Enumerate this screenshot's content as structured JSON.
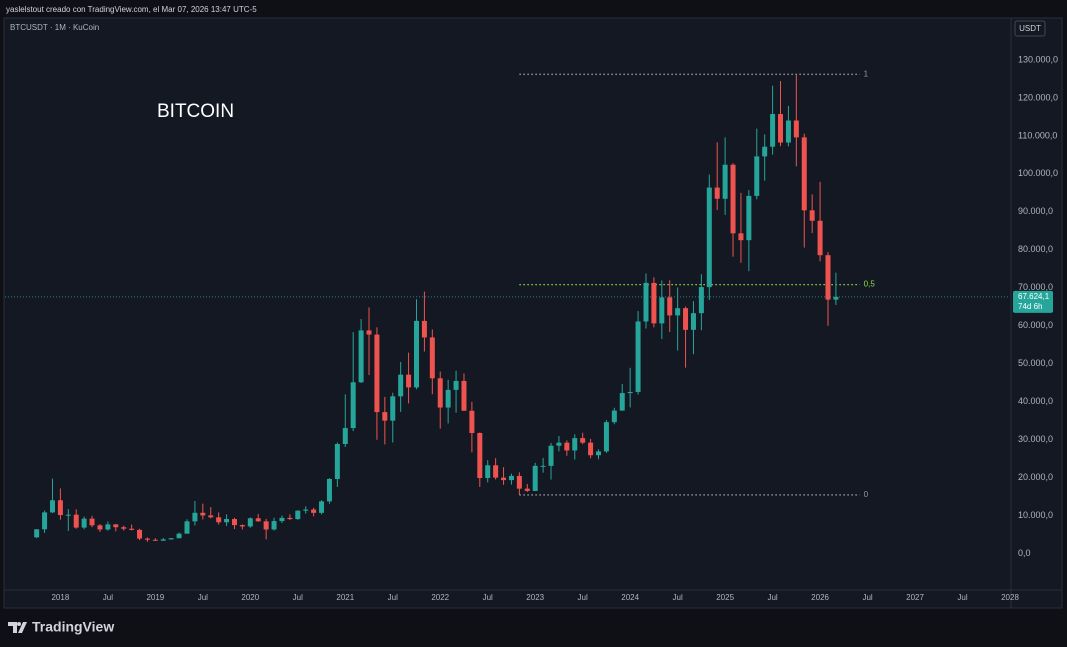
{
  "header": "yaslelstout creado con TradingView.com, el Mar 07, 2026 13:47 UTC-5",
  "footer_brand": "TradingView",
  "chart_data": {
    "type": "candlestick",
    "symbol": "BTCUSDT · 1M · KuCoin",
    "title": "BITCOIN",
    "price_axis_unit": "USDT",
    "up_color": "#26a69a",
    "down_color": "#ef5350",
    "x": [
      "2017-10",
      "2017-11",
      "2017-12",
      "2018-01",
      "2018-02",
      "2018-03",
      "2018-04",
      "2018-05",
      "2018-06",
      "2018-07",
      "2018-08",
      "2018-09",
      "2018-10",
      "2018-11",
      "2018-12",
      "2019-01",
      "2019-02",
      "2019-03",
      "2019-04",
      "2019-05",
      "2019-06",
      "2019-07",
      "2019-08",
      "2019-09",
      "2019-10",
      "2019-11",
      "2019-12",
      "2020-01",
      "2020-02",
      "2020-03",
      "2020-04",
      "2020-05",
      "2020-06",
      "2020-07",
      "2020-08",
      "2020-09",
      "2020-10",
      "2020-11",
      "2020-12",
      "2021-01",
      "2021-02",
      "2021-03",
      "2021-04",
      "2021-05",
      "2021-06",
      "2021-07",
      "2021-08",
      "2021-09",
      "2021-10",
      "2021-11",
      "2021-12",
      "2022-01",
      "2022-02",
      "2022-03",
      "2022-04",
      "2022-05",
      "2022-06",
      "2022-07",
      "2022-08",
      "2022-09",
      "2022-10",
      "2022-11",
      "2022-12",
      "2023-01",
      "2023-02",
      "2023-03",
      "2023-04",
      "2023-05",
      "2023-06",
      "2023-07",
      "2023-08",
      "2023-09",
      "2023-10",
      "2023-11",
      "2023-12",
      "2024-01",
      "2024-02",
      "2024-03",
      "2024-04",
      "2024-05",
      "2024-06",
      "2024-07",
      "2024-08",
      "2024-09",
      "2024-10",
      "2024-11",
      "2024-12",
      "2025-01",
      "2025-02",
      "2025-03",
      "2025-04",
      "2025-05",
      "2025-06",
      "2025-07",
      "2025-08",
      "2025-09",
      "2025-10",
      "2025-11",
      "2025-12",
      "2026-01",
      "2026-02",
      "2026-03"
    ],
    "open": [
      4340,
      6450,
      10900,
      14100,
      10200,
      10300,
      6900,
      9250,
      7500,
      6400,
      7750,
      7000,
      6600,
      6300,
      4000,
      3700,
      3450,
      3800,
      4100,
      5300,
      8550,
      10800,
      10100,
      9600,
      8300,
      9150,
      7550,
      7200,
      9350,
      8550,
      6400,
      8620,
      9450,
      9140,
      11350,
      11650,
      10780,
      13800,
      19700,
      28900,
      33100,
      45150,
      58800,
      57700,
      37300,
      35050,
      41450,
      47150,
      43800,
      61300,
      56950,
      46200,
      38500,
      43150,
      45500,
      37650,
      31800,
      19950,
      23300,
      20050,
      19400,
      20500,
      17150,
      16550,
      23150,
      23150,
      28450,
      29250,
      27200,
      30450,
      29250,
      25950,
      26950,
      34650,
      37700,
      42300,
      42600,
      61150,
      71300,
      60650,
      67500,
      62750,
      64650,
      58950,
      63350,
      70200,
      96400,
      93450,
      102400,
      84350,
      82550,
      94200,
      104600,
      107150,
      115750,
      108250,
      114050,
      109600,
      90400,
      87650,
      78600,
      66900
    ],
    "high": [
      6470,
      11400,
      19800,
      17200,
      11800,
      11700,
      9800,
      10000,
      7800,
      8500,
      7800,
      7400,
      7700,
      6600,
      4300,
      4100,
      4200,
      4150,
      5600,
      9100,
      13900,
      13200,
      12300,
      10900,
      10400,
      9500,
      7750,
      9600,
      10500,
      9200,
      9500,
      10070,
      10400,
      11450,
      12480,
      12100,
      14100,
      19900,
      29300,
      41950,
      58350,
      61800,
      64850,
      59600,
      41300,
      42400,
      50500,
      52950,
      67000,
      69000,
      59050,
      47950,
      45800,
      48200,
      47450,
      40000,
      31950,
      24650,
      25200,
      22800,
      21100,
      21450,
      18400,
      23950,
      25250,
      29200,
      31000,
      29850,
      31450,
      31850,
      30250,
      27500,
      35200,
      38450,
      44700,
      48950,
      63900,
      73800,
      72800,
      71950,
      72000,
      70100,
      65100,
      66500,
      73600,
      99800,
      108300,
      109600,
      102800,
      95000,
      95750,
      111900,
      110400,
      123200,
      124450,
      117900,
      126200,
      110600,
      94600,
      97900,
      79400,
      74000
    ],
    "low": [
      4100,
      5500,
      10700,
      9000,
      6000,
      6600,
      6450,
      7000,
      5750,
      6100,
      5900,
      6100,
      6200,
      3600,
      3150,
      3350,
      3400,
      3700,
      4050,
      5300,
      7450,
      9050,
      9350,
      7700,
      7300,
      6500,
      6400,
      6850,
      8450,
      3800,
      6150,
      8100,
      8900,
      8950,
      10600,
      9850,
      10400,
      13200,
      17600,
      28100,
      32300,
      44950,
      47050,
      30000,
      28800,
      29300,
      37350,
      39600,
      43300,
      53250,
      42000,
      32950,
      34300,
      37150,
      37600,
      26700,
      17600,
      18800,
      19550,
      18150,
      18200,
      15500,
      16300,
      16500,
      21350,
      19550,
      26950,
      25800,
      24800,
      28850,
      25150,
      24900,
      26550,
      34100,
      37600,
      38550,
      41900,
      59300,
      59600,
      56550,
      58400,
      53500,
      49000,
      52550,
      58850,
      66800,
      90500,
      89200,
      78200,
      76600,
      74400,
      93300,
      98200,
      105100,
      107300,
      107250,
      102000,
      80600,
      84400,
      77000,
      60000,
      65500
    ],
    "close": [
      6450,
      10900,
      14100,
      10200,
      10300,
      6900,
      9250,
      7500,
      6400,
      7750,
      7000,
      6600,
      6300,
      4000,
      3700,
      3450,
      3800,
      4100,
      5300,
      8550,
      10800,
      10100,
      9600,
      8300,
      9150,
      7550,
      7200,
      9350,
      8550,
      6400,
      8620,
      9450,
      9140,
      11350,
      11650,
      10780,
      13800,
      19700,
      28900,
      33100,
      45150,
      58800,
      57700,
      37300,
      35050,
      41450,
      47150,
      43800,
      61300,
      56950,
      46200,
      38500,
      43150,
      45500,
      37650,
      31800,
      19950,
      23300,
      20050,
      19400,
      20500,
      17150,
      16550,
      23150,
      23150,
      28450,
      29250,
      27200,
      30450,
      29250,
      25950,
      26950,
      34650,
      37700,
      42300,
      42600,
      61150,
      71300,
      60650,
      67500,
      62750,
      64650,
      58950,
      63350,
      70200,
      96400,
      93450,
      102400,
      84350,
      82550,
      94200,
      104600,
      107150,
      115750,
      108250,
      114050,
      109600,
      90400,
      87650,
      78600,
      66900,
      67624.1
    ],
    "xlim": [
      "2017-06",
      "2028-01"
    ],
    "xticks": [
      {
        "value": "2018-01",
        "label": "2018"
      },
      {
        "value": "2018-07",
        "label": "Jul"
      },
      {
        "value": "2019-01",
        "label": "2019"
      },
      {
        "value": "2019-07",
        "label": "Jul"
      },
      {
        "value": "2020-01",
        "label": "2020"
      },
      {
        "value": "2020-07",
        "label": "Jul"
      },
      {
        "value": "2021-01",
        "label": "2021"
      },
      {
        "value": "2021-07",
        "label": "Jul"
      },
      {
        "value": "2022-01",
        "label": "2022"
      },
      {
        "value": "2022-07",
        "label": "Jul"
      },
      {
        "value": "2023-01",
        "label": "2023"
      },
      {
        "value": "2023-07",
        "label": "Jul"
      },
      {
        "value": "2024-01",
        "label": "2024"
      },
      {
        "value": "2024-07",
        "label": "Jul"
      },
      {
        "value": "2025-01",
        "label": "2025"
      },
      {
        "value": "2025-07",
        "label": "Jul"
      },
      {
        "value": "2026-01",
        "label": "2026"
      },
      {
        "value": "2026-07",
        "label": "Jul"
      },
      {
        "value": "2027-01",
        "label": "2027"
      },
      {
        "value": "2027-07",
        "label": "Jul"
      },
      {
        "value": "2028-01",
        "label": "2028"
      }
    ],
    "ylim": [
      -9000,
      140500
    ],
    "yticks": [
      {
        "value": 0,
        "label": "0,0"
      },
      {
        "value": 10000,
        "label": "10.000,0"
      },
      {
        "value": 20000,
        "label": "20.000,0"
      },
      {
        "value": 30000,
        "label": "30.000,0"
      },
      {
        "value": 40000,
        "label": "40.000,0"
      },
      {
        "value": 50000,
        "label": "50.000,0"
      },
      {
        "value": 60000,
        "label": "60.000,0"
      },
      {
        "value": 70000,
        "label": "70.000,0"
      },
      {
        "value": 80000,
        "label": "80.000,0"
      },
      {
        "value": 90000,
        "label": "90.000,0"
      },
      {
        "value": 100000,
        "label": "100.000,0"
      },
      {
        "value": 110000,
        "label": "110.000,0"
      },
      {
        "value": 120000,
        "label": "120.000,0"
      },
      {
        "value": 130000,
        "label": "130.000,0"
      }
    ],
    "grid": false,
    "last_price": {
      "value": 67624.1,
      "label": "67.624,1"
    },
    "countdown": "74d 6h",
    "fib": {
      "start": "2022-11",
      "end": "2026-06",
      "levels": [
        {
          "label": "1",
          "price": 126200,
          "color": "#9598a1"
        },
        {
          "label": "0,5",
          "price": 70850,
          "color": "#8bdc4a"
        },
        {
          "label": "0",
          "price": 15500,
          "color": "#9598a1"
        }
      ]
    }
  }
}
